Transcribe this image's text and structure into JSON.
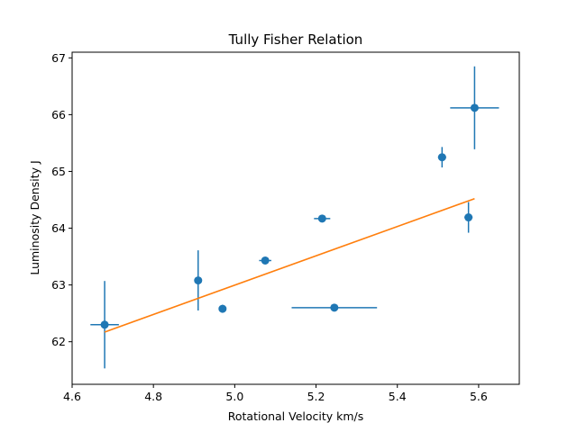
{
  "chart_data": {
    "type": "scatter",
    "title": "Tully Fisher Relation",
    "xlabel": "Rotational Velocity km/s",
    "ylabel": "Luminosity Density J",
    "xlim": [
      4.6,
      5.7
    ],
    "ylim": [
      61.25,
      67.1
    ],
    "xticks": [
      4.6,
      4.8,
      5.0,
      5.2,
      5.4,
      5.6
    ],
    "yticks": [
      62,
      63,
      64,
      65,
      66,
      67
    ],
    "grid": false,
    "colors": {
      "points": "#1f77b4",
      "fit": "#ff7f0e"
    },
    "series": [
      {
        "kind": "errorbar",
        "points": [
          {
            "x": 4.68,
            "y": 62.3,
            "xerr": 0.035,
            "yerr": 0.77
          },
          {
            "x": 4.91,
            "y": 63.08,
            "xerr": 0.0,
            "yerr": 0.53
          },
          {
            "x": 4.97,
            "y": 62.58,
            "xerr": 0.0,
            "yerr": 0.07
          },
          {
            "x": 5.075,
            "y": 63.43,
            "xerr": 0.015,
            "yerr": 0.05
          },
          {
            "x": 5.215,
            "y": 64.17,
            "xerr": 0.02,
            "yerr": 0.0
          },
          {
            "x": 5.245,
            "y": 62.6,
            "xerr": 0.105,
            "yerr": 0.0
          },
          {
            "x": 5.51,
            "y": 65.25,
            "xerr": 0.01,
            "yerr": 0.18
          },
          {
            "x": 5.575,
            "y": 64.19,
            "xerr": 0.01,
            "yerr": 0.27
          },
          {
            "x": 5.59,
            "y": 66.12,
            "xerr": 0.06,
            "yerr": 0.73
          }
        ]
      },
      {
        "kind": "line",
        "x": [
          4.68,
          5.59
        ],
        "y": [
          62.17,
          64.52
        ]
      }
    ]
  }
}
